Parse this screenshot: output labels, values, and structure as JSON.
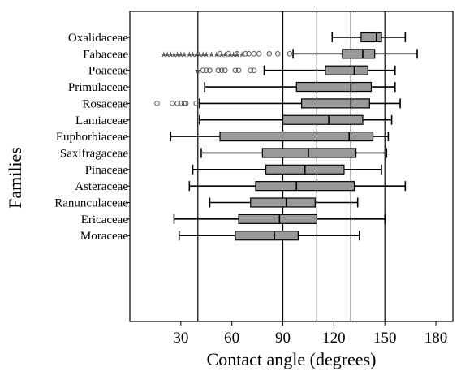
{
  "chart_data": {
    "type": "boxplot",
    "orientation": "horizontal",
    "xlabel": "Contact angle (degrees)",
    "ylabel": "Families",
    "xlim": [
      0,
      190
    ],
    "xticks": [
      30,
      60,
      90,
      120,
      150,
      180
    ],
    "reference_lines": [
      40,
      90,
      110,
      130,
      150
    ],
    "colors": {
      "box_fill": "#999999",
      "stroke": "#000000",
      "outlier": "#555555",
      "background": "#ffffff"
    },
    "series": [
      {
        "category": "Oxalidaceae",
        "whisker_low": 119,
        "q1": 136,
        "median": 145,
        "q3": 148,
        "whisker_high": 162,
        "outliers_circle": [],
        "outliers_star": []
      },
      {
        "category": "Fabaceae",
        "whisker_low": 96,
        "q1": 125,
        "median": 137,
        "q3": 144,
        "whisker_high": 169,
        "outliers_circle": [
          53,
          58,
          63,
          68,
          70,
          73,
          76,
          82,
          87,
          94
        ],
        "outliers_star": [
          20,
          22,
          24,
          26,
          28,
          30,
          32,
          35,
          37,
          39,
          41,
          43,
          45,
          48,
          51,
          54,
          56,
          59,
          61,
          63,
          66
        ]
      },
      {
        "category": "Poaceae",
        "whisker_low": 79,
        "q1": 115,
        "median": 132,
        "q3": 140,
        "whisker_high": 156,
        "outliers_circle": [
          43,
          45,
          47,
          52,
          54,
          56,
          62,
          64,
          71,
          73
        ],
        "outliers_star": [
          40
        ]
      },
      {
        "category": "Primulaceae",
        "whisker_low": 44,
        "q1": 98,
        "median": 130,
        "q3": 142,
        "whisker_high": 156,
        "outliers_circle": [],
        "outliers_star": []
      },
      {
        "category": "Rosaceae",
        "whisker_low": 41,
        "q1": 101,
        "median": 130,
        "q3": 141,
        "whisker_high": 159,
        "outliers_circle": [
          16,
          25,
          28,
          30,
          32,
          33,
          39
        ],
        "outliers_star": []
      },
      {
        "category": "Lamiaceae",
        "whisker_low": 41,
        "q1": 90,
        "median": 117,
        "q3": 137,
        "whisker_high": 154,
        "outliers_circle": [],
        "outliers_star": []
      },
      {
        "category": "Euphorbiaceae",
        "whisker_low": 24,
        "q1": 53,
        "median": 129,
        "q3": 143,
        "whisker_high": 152,
        "outliers_circle": [],
        "outliers_star": []
      },
      {
        "category": "Saxifragaceae",
        "whisker_low": 42,
        "q1": 78,
        "median": 105,
        "q3": 133,
        "whisker_high": 151,
        "outliers_circle": [],
        "outliers_star": []
      },
      {
        "category": "Pinaceae",
        "whisker_low": 37,
        "q1": 80,
        "median": 103,
        "q3": 126,
        "whisker_high": 148,
        "outliers_circle": [],
        "outliers_star": []
      },
      {
        "category": "Asteraceae",
        "whisker_low": 35,
        "q1": 74,
        "median": 98,
        "q3": 132,
        "whisker_high": 162,
        "outliers_circle": [],
        "outliers_star": []
      },
      {
        "category": "Ranunculaceae",
        "whisker_low": 47,
        "q1": 71,
        "median": 92,
        "q3": 109,
        "whisker_high": 134,
        "outliers_circle": [],
        "outliers_star": []
      },
      {
        "category": "Ericaceae",
        "whisker_low": 26,
        "q1": 64,
        "median": 88,
        "q3": 110,
        "whisker_high": 150,
        "outliers_circle": [],
        "outliers_star": []
      },
      {
        "category": "Moraceae",
        "whisker_low": 29,
        "q1": 62,
        "median": 85,
        "q3": 99,
        "whisker_high": 135,
        "outliers_circle": [],
        "outliers_star": []
      }
    ]
  }
}
